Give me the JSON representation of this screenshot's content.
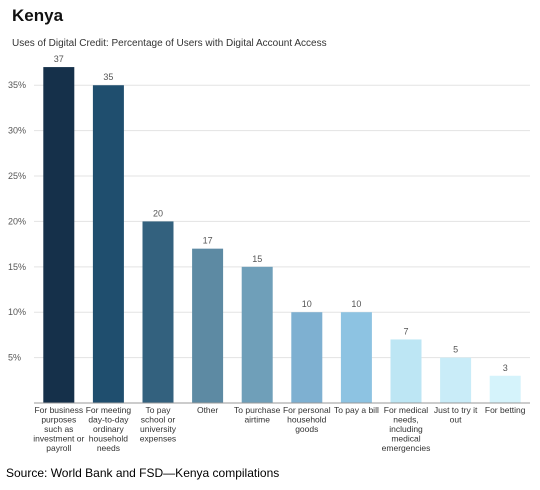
{
  "chart_data": {
    "type": "bar",
    "title": "Kenya",
    "subtitle": "Uses of Digital Credit: Percentage of Users with Digital Account Access",
    "categories": [
      "For business purposes such as investment or payroll",
      "For meeting day-to-day ordinary household needs",
      "To pay school or university expenses",
      "Other",
      "To purchase airtime",
      "For personal household goods",
      "To pay a bill",
      "For medical needs, including medical emergencies",
      "Just to try it out",
      "For betting"
    ],
    "category_lines": [
      [
        "For business",
        "purposes",
        "such as",
        "investment or",
        "payroll"
      ],
      [
        "For meeting",
        "day-to-day",
        "ordinary",
        "household",
        "needs"
      ],
      [
        "To pay",
        "school or",
        "university",
        "expenses"
      ],
      [
        "Other"
      ],
      [
        "To purchase",
        "airtime"
      ],
      [
        "For personal",
        "household",
        "goods"
      ],
      [
        "To pay a bill"
      ],
      [
        "For medical",
        "needs,",
        "including",
        "medical",
        "emergencies"
      ],
      [
        "Just to try it",
        "out"
      ],
      [
        "For betting"
      ]
    ],
    "values": [
      37,
      35,
      20,
      17,
      15,
      10,
      10,
      7,
      5,
      3
    ],
    "bar_colors": [
      "#15304a",
      "#1f4e6e",
      "#33617e",
      "#5d8aa3",
      "#6f9fb9",
      "#7eb0d1",
      "#8dc3e2",
      "#bde6f4",
      "#c9ecf8",
      "#d5f3fb"
    ],
    "yticks": [
      5,
      10,
      15,
      20,
      25,
      30,
      35
    ],
    "ytick_labels": [
      "5%",
      "10%",
      "15%",
      "20%",
      "25%",
      "30%",
      "35%"
    ],
    "ylim": [
      0,
      38
    ],
    "grid": true,
    "xlabel": "",
    "ylabel": ""
  },
  "source_note": "Source: World Bank and FSD—Kenya compilations"
}
